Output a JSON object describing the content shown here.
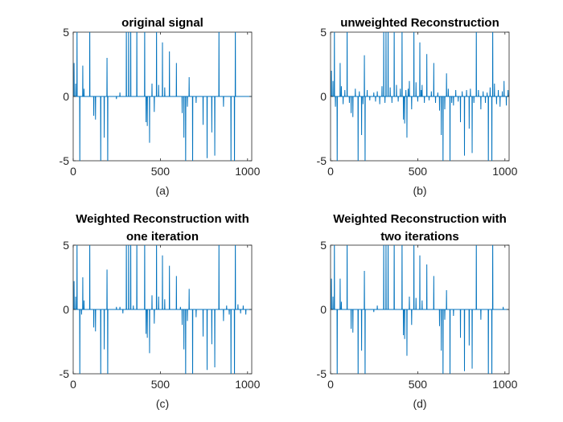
{
  "chart_data": [
    {
      "type": "line",
      "title": [
        "original signal"
      ],
      "caption": "(a)",
      "xlim": [
        0,
        1024
      ],
      "ylim": [
        -5,
        5
      ],
      "xticks": [
        0,
        500,
        1000
      ],
      "yticks": [
        -5,
        0,
        5
      ],
      "xtick_labels": [
        "0",
        "500",
        "1000"
      ],
      "ytick_labels": [
        "-5",
        "0",
        "5"
      ],
      "color": "#0072BD",
      "n_points": 1024,
      "spikes": [
        [
          5,
          2.6
        ],
        [
          14,
          1.0
        ],
        [
          22,
          6.0
        ],
        [
          38,
          -6.0
        ],
        [
          55,
          2.4
        ],
        [
          62,
          0.6
        ],
        [
          95,
          6.0
        ],
        [
          118,
          -1.5
        ],
        [
          128,
          -1.8
        ],
        [
          158,
          -6.0
        ],
        [
          178,
          -3.2
        ],
        [
          194,
          3.0
        ],
        [
          198,
          -6.0
        ],
        [
          248,
          -0.2
        ],
        [
          268,
          0.3
        ],
        [
          305,
          6.0
        ],
        [
          318,
          6.0
        ],
        [
          330,
          6.0
        ],
        [
          365,
          6.0
        ],
        [
          410,
          6.0
        ],
        [
          418,
          -2.0
        ],
        [
          425,
          -2.3
        ],
        [
          438,
          -3.6
        ],
        [
          452,
          1.0
        ],
        [
          465,
          -1.2
        ],
        [
          478,
          6.0
        ],
        [
          490,
          0.9
        ],
        [
          512,
          4.2
        ],
        [
          525,
          0.7
        ],
        [
          552,
          3.5
        ],
        [
          592,
          2.6
        ],
        [
          625,
          -1.3
        ],
        [
          635,
          -3.2
        ],
        [
          645,
          -6.0
        ],
        [
          655,
          -0.8
        ],
        [
          665,
          1.5
        ],
        [
          685,
          -6.0
        ],
        [
          705,
          -0.5
        ],
        [
          745,
          -2.2
        ],
        [
          768,
          -4.8
        ],
        [
          795,
          -2.8
        ],
        [
          812,
          -4.6
        ],
        [
          836,
          6.0
        ],
        [
          862,
          -0.8
        ],
        [
          905,
          -6.0
        ],
        [
          925,
          -6.0
        ],
        [
          930,
          6.0
        ]
      ]
    },
    {
      "type": "line",
      "title": [
        "unweighted Reconstruction"
      ],
      "caption": "(b)",
      "xlim": [
        0,
        1024
      ],
      "ylim": [
        -5,
        5
      ],
      "xticks": [
        0,
        500,
        1000
      ],
      "yticks": [
        -5,
        0,
        5
      ],
      "xtick_labels": [
        "0",
        "500",
        "1000"
      ],
      "ytick_labels": [
        "-5",
        "0",
        "5"
      ],
      "color": "#0072BD",
      "n_points": 1024,
      "spikes": [
        [
          5,
          2.0
        ],
        [
          14,
          1.2
        ],
        [
          22,
          6.0
        ],
        [
          28,
          -0.8
        ],
        [
          38,
          -6.0
        ],
        [
          55,
          2.6
        ],
        [
          62,
          0.8
        ],
        [
          72,
          -0.6
        ],
        [
          82,
          0.5
        ],
        [
          95,
          6.0
        ],
        [
          108,
          -0.5
        ],
        [
          118,
          -1.3
        ],
        [
          128,
          -1.6
        ],
        [
          142,
          0.6
        ],
        [
          158,
          -6.0
        ],
        [
          165,
          0.4
        ],
        [
          178,
          -3.0
        ],
        [
          186,
          -0.6
        ],
        [
          194,
          3.2
        ],
        [
          198,
          -6.0
        ],
        [
          210,
          0.5
        ],
        [
          225,
          -0.3
        ],
        [
          248,
          0.3
        ],
        [
          258,
          -0.4
        ],
        [
          268,
          0.4
        ],
        [
          282,
          -0.6
        ],
        [
          295,
          0.8
        ],
        [
          305,
          6.0
        ],
        [
          312,
          -0.5
        ],
        [
          318,
          6.0
        ],
        [
          330,
          6.0
        ],
        [
          342,
          0.7
        ],
        [
          352,
          -0.5
        ],
        [
          365,
          6.0
        ],
        [
          378,
          0.9
        ],
        [
          388,
          -0.4
        ],
        [
          400,
          0.6
        ],
        [
          410,
          6.0
        ],
        [
          418,
          -1.8
        ],
        [
          425,
          -2.1
        ],
        [
          432,
          0.5
        ],
        [
          438,
          -3.2
        ],
        [
          445,
          0.6
        ],
        [
          452,
          1.2
        ],
        [
          465,
          -1.0
        ],
        [
          478,
          6.0
        ],
        [
          490,
          1.1
        ],
        [
          500,
          -0.4
        ],
        [
          512,
          4.2
        ],
        [
          520,
          0.5
        ],
        [
          525,
          0.9
        ],
        [
          538,
          -0.5
        ],
        [
          552,
          3.3
        ],
        [
          565,
          -0.3
        ],
        [
          578,
          0.4
        ],
        [
          592,
          2.6
        ],
        [
          602,
          -0.5
        ],
        [
          615,
          0.3
        ],
        [
          625,
          -1.1
        ],
        [
          635,
          -3.0
        ],
        [
          645,
          -6.0
        ],
        [
          655,
          -1.0
        ],
        [
          665,
          1.8
        ],
        [
          675,
          0.6
        ],
        [
          685,
          -6.0
        ],
        [
          695,
          -0.5
        ],
        [
          705,
          -0.7
        ],
        [
          718,
          0.5
        ],
        [
          732,
          -0.4
        ],
        [
          745,
          -2.0
        ],
        [
          755,
          0.4
        ],
        [
          768,
          -4.6
        ],
        [
          780,
          0.5
        ],
        [
          795,
          -2.5
        ],
        [
          802,
          0.6
        ],
        [
          812,
          -4.4
        ],
        [
          822,
          -0.5
        ],
        [
          836,
          6.0
        ],
        [
          848,
          0.5
        ],
        [
          862,
          -1.0
        ],
        [
          875,
          0.4
        ],
        [
          888,
          -0.5
        ],
        [
          898,
          0.3
        ],
        [
          905,
          -6.0
        ],
        [
          915,
          0.7
        ],
        [
          925,
          -6.0
        ],
        [
          930,
          6.0
        ],
        [
          940,
          1.0
        ],
        [
          952,
          -0.6
        ],
        [
          962,
          0.5
        ],
        [
          972,
          -0.8
        ],
        [
          985,
          0.4
        ],
        [
          995,
          1.2
        ],
        [
          1008,
          -0.7
        ],
        [
          1018,
          0.5
        ]
      ]
    },
    {
      "type": "line",
      "title": [
        "Weighted Reconstruction with",
        "one iteration"
      ],
      "caption": "(c)",
      "xlim": [
        0,
        1024
      ],
      "ylim": [
        -5,
        5
      ],
      "xticks": [
        0,
        500,
        1000
      ],
      "yticks": [
        -5,
        0,
        5
      ],
      "xtick_labels": [
        "0",
        "500",
        "1000"
      ],
      "ytick_labels": [
        "-5",
        "0",
        "5"
      ],
      "color": "#0072BD",
      "n_points": 1024,
      "spikes": [
        [
          5,
          2.2
        ],
        [
          14,
          1.0
        ],
        [
          22,
          6.0
        ],
        [
          38,
          -6.0
        ],
        [
          48,
          -0.4
        ],
        [
          55,
          2.5
        ],
        [
          62,
          0.7
        ],
        [
          95,
          6.0
        ],
        [
          118,
          -1.4
        ],
        [
          128,
          -1.7
        ],
        [
          158,
          -6.0
        ],
        [
          178,
          -3.1
        ],
        [
          194,
          3.1
        ],
        [
          198,
          -6.0
        ],
        [
          248,
          0.2
        ],
        [
          268,
          0.2
        ],
        [
          285,
          -0.3
        ],
        [
          305,
          6.0
        ],
        [
          318,
          6.0
        ],
        [
          330,
          6.0
        ],
        [
          345,
          0.3
        ],
        [
          365,
          6.0
        ],
        [
          410,
          6.0
        ],
        [
          418,
          -1.9
        ],
        [
          425,
          -2.2
        ],
        [
          438,
          -3.4
        ],
        [
          452,
          1.1
        ],
        [
          465,
          -1.1
        ],
        [
          478,
          6.0
        ],
        [
          490,
          1.0
        ],
        [
          512,
          4.2
        ],
        [
          525,
          0.8
        ],
        [
          552,
          3.4
        ],
        [
          592,
          2.6
        ],
        [
          615,
          0.2
        ],
        [
          625,
          -1.2
        ],
        [
          635,
          -3.1
        ],
        [
          645,
          -6.0
        ],
        [
          655,
          -0.9
        ],
        [
          665,
          1.6
        ],
        [
          685,
          -6.0
        ],
        [
          705,
          -0.6
        ],
        [
          745,
          -2.1
        ],
        [
          768,
          -4.7
        ],
        [
          795,
          -2.7
        ],
        [
          812,
          -4.5
        ],
        [
          836,
          6.0
        ],
        [
          862,
          -0.9
        ],
        [
          880,
          0.3
        ],
        [
          895,
          -0.4
        ],
        [
          905,
          -6.0
        ],
        [
          925,
          -6.0
        ],
        [
          930,
          6.0
        ],
        [
          945,
          0.4
        ],
        [
          960,
          -0.3
        ],
        [
          975,
          0.3
        ],
        [
          990,
          -0.4
        ]
      ]
    },
    {
      "type": "line",
      "title": [
        "Weighted Reconstruction with",
        "two iterations"
      ],
      "caption": "(d)",
      "xlim": [
        0,
        1024
      ],
      "ylim": [
        -5,
        5
      ],
      "xticks": [
        0,
        500,
        1000
      ],
      "yticks": [
        -5,
        0,
        5
      ],
      "xtick_labels": [
        "0",
        "500",
        "1000"
      ],
      "ytick_labels": [
        "-5",
        "0",
        "5"
      ],
      "color": "#0072BD",
      "n_points": 1024,
      "spikes": [
        [
          5,
          2.4
        ],
        [
          14,
          1.0
        ],
        [
          22,
          6.0
        ],
        [
          38,
          -6.0
        ],
        [
          55,
          2.4
        ],
        [
          62,
          0.6
        ],
        [
          95,
          6.0
        ],
        [
          118,
          -1.5
        ],
        [
          128,
          -1.8
        ],
        [
          158,
          -6.0
        ],
        [
          178,
          -3.2
        ],
        [
          194,
          3.0
        ],
        [
          198,
          -6.0
        ],
        [
          248,
          -0.2
        ],
        [
          268,
          0.3
        ],
        [
          305,
          6.0
        ],
        [
          318,
          6.0
        ],
        [
          330,
          6.0
        ],
        [
          365,
          6.0
        ],
        [
          410,
          6.0
        ],
        [
          418,
          -2.0
        ],
        [
          425,
          -2.3
        ],
        [
          438,
          -3.6
        ],
        [
          452,
          1.0
        ],
        [
          465,
          -1.2
        ],
        [
          478,
          6.0
        ],
        [
          490,
          0.9
        ],
        [
          512,
          4.2
        ],
        [
          525,
          0.7
        ],
        [
          552,
          3.5
        ],
        [
          592,
          2.6
        ],
        [
          625,
          -1.3
        ],
        [
          635,
          -3.2
        ],
        [
          645,
          -6.0
        ],
        [
          655,
          -0.8
        ],
        [
          665,
          1.5
        ],
        [
          685,
          -6.0
        ],
        [
          705,
          -0.5
        ],
        [
          745,
          -2.2
        ],
        [
          768,
          -4.8
        ],
        [
          795,
          -2.8
        ],
        [
          812,
          -4.6
        ],
        [
          836,
          6.0
        ],
        [
          862,
          -0.8
        ],
        [
          905,
          -6.0
        ],
        [
          925,
          -6.0
        ],
        [
          930,
          6.0
        ],
        [
          990,
          0.2
        ]
      ]
    }
  ]
}
